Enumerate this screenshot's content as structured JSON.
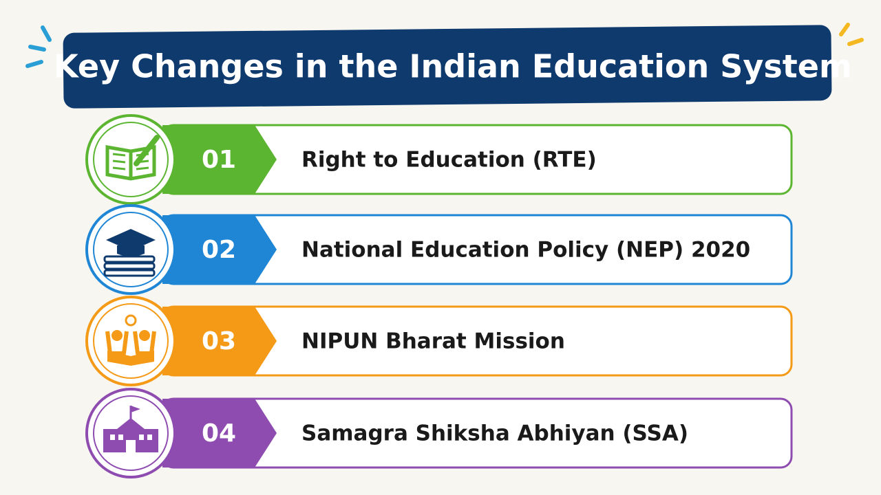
{
  "header": {
    "title": "Key Changes in the Indian Education System"
  },
  "items": [
    {
      "number": "01",
      "label": "Right to Education (RTE)"
    },
    {
      "number": "02",
      "label": "National Education Policy (NEP) 2020"
    },
    {
      "number": "03",
      "label": "NIPUN Bharat Mission"
    },
    {
      "number": "04",
      "label": "Samagra Shiksha Abhiyan (SSA)"
    }
  ]
}
